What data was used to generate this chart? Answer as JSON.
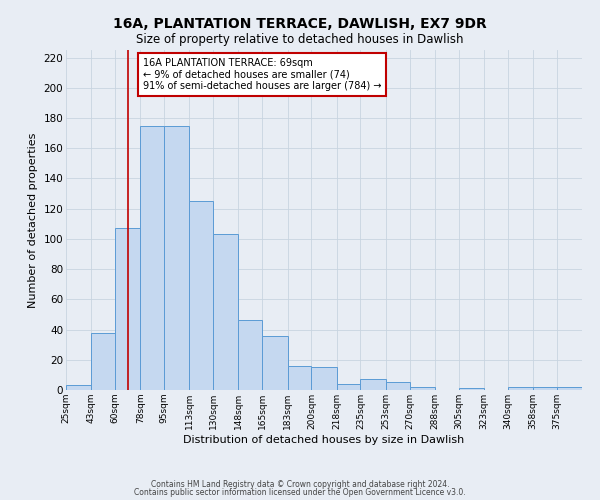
{
  "title": "16A, PLANTATION TERRACE, DAWLISH, EX7 9DR",
  "subtitle": "Size of property relative to detached houses in Dawlish",
  "xlabel": "Distribution of detached houses by size in Dawlish",
  "ylabel": "Number of detached properties",
  "bin_labels": [
    "25sqm",
    "43sqm",
    "60sqm",
    "78sqm",
    "95sqm",
    "113sqm",
    "130sqm",
    "148sqm",
    "165sqm",
    "183sqm",
    "200sqm",
    "218sqm",
    "235sqm",
    "253sqm",
    "270sqm",
    "288sqm",
    "305sqm",
    "323sqm",
    "340sqm",
    "358sqm",
    "375sqm"
  ],
  "bin_edges": [
    25,
    43,
    60,
    78,
    95,
    113,
    130,
    148,
    165,
    183,
    200,
    218,
    235,
    253,
    270,
    288,
    305,
    323,
    340,
    358,
    375,
    393
  ],
  "bar_heights": [
    3,
    38,
    107,
    175,
    175,
    125,
    103,
    46,
    36,
    16,
    15,
    4,
    7,
    5,
    2,
    0,
    1,
    0,
    2,
    2,
    2
  ],
  "bar_color": "#c5d8f0",
  "bar_edge_color": "#5b9bd5",
  "grid_color": "#c8d4e0",
  "background_color": "#e8edf4",
  "vline_x": 69,
  "vline_color": "#c00000",
  "annotation_text": "16A PLANTATION TERRACE: 69sqm\n← 9% of detached houses are smaller (74)\n91% of semi-detached houses are larger (784) →",
  "annotation_box_color": "#ffffff",
  "annotation_box_edge": "#c00000",
  "ylim": [
    0,
    225
  ],
  "yticks": [
    0,
    20,
    40,
    60,
    80,
    100,
    120,
    140,
    160,
    180,
    200,
    220
  ],
  "footer_line1": "Contains HM Land Registry data © Crown copyright and database right 2024.",
  "footer_line2": "Contains public sector information licensed under the Open Government Licence v3.0."
}
